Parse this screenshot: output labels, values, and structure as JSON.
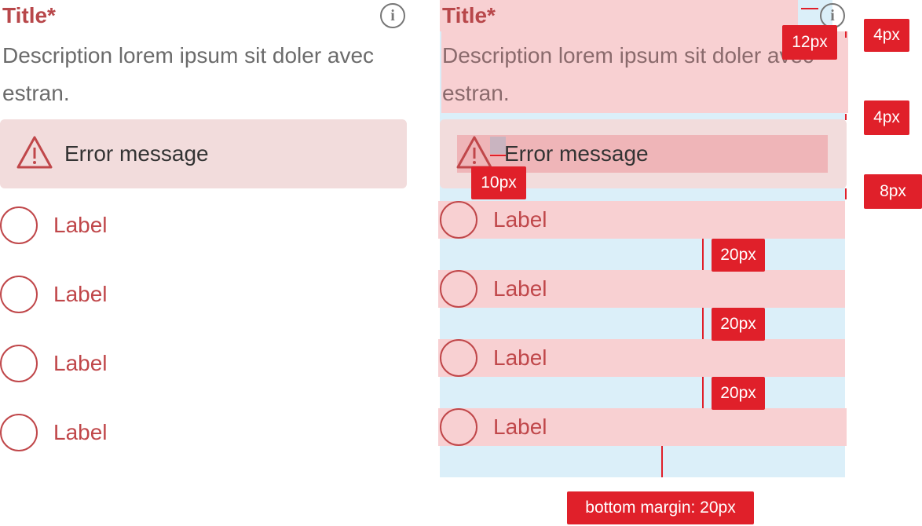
{
  "left": {
    "title": "Title*",
    "description": "Description lorem ipsum sit doler avec estran.",
    "error": "Error message",
    "options": [
      "Label",
      "Label",
      "Label",
      "Label"
    ]
  },
  "right": {
    "title": "Title*",
    "description": "Description lorem ipsum sit doler avec estran.",
    "error": "Error message",
    "options": [
      "Label",
      "Label",
      "Label",
      "Label"
    ]
  },
  "annotations": {
    "title_icon_gap": "12px",
    "title_gap": "4px",
    "description_gap": "4px",
    "icon_gap": "10px",
    "error_gap": "8px",
    "option_gaps": [
      "20px",
      "20px",
      "20px"
    ],
    "bottom_margin": "bottom margin: 20px"
  }
}
